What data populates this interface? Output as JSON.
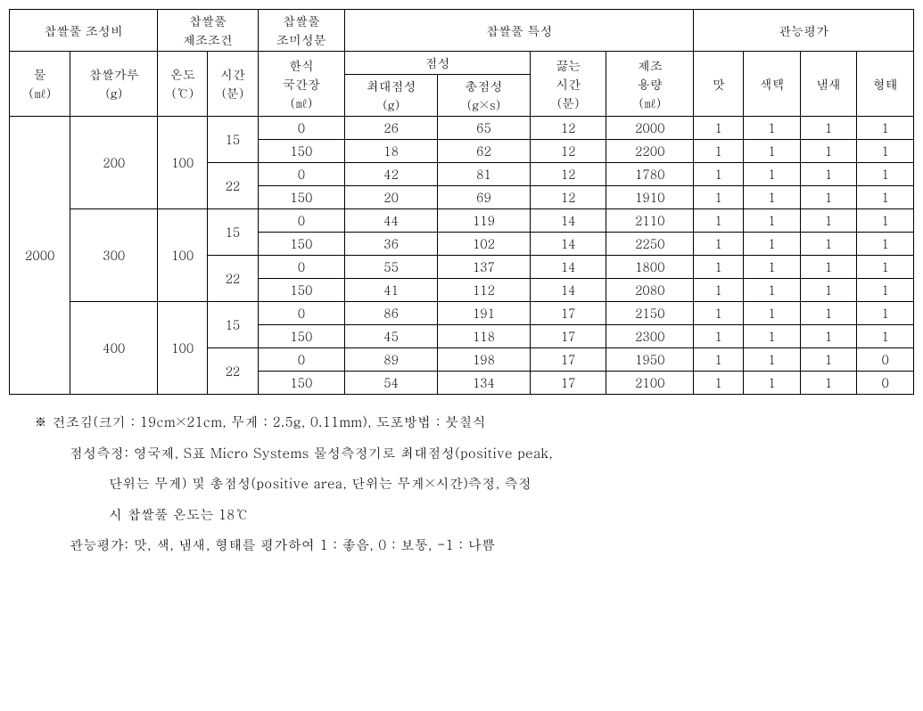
{
  "headers": {
    "group1": "찹쌀풀 조성비",
    "group2": "찹쌀풀\n제조조건",
    "group3": "찹쌀풀\n조미성분",
    "group4": "찹쌀풀 특성",
    "group5": "관능평가",
    "water": "물\n(㎖)",
    "flour": "찹쌀가루\n(g)",
    "temp": "온도\n(℃)",
    "time": "시간\n(분)",
    "soy": "한식\n국간장\n(㎖)",
    "visc_group": "점성",
    "maxvisc": "최대점성\n(g)",
    "totvisc": "총점성\n(g×s)",
    "boil": "끓는\n시간\n(분)",
    "vol": "제조\n용량\n(㎖)",
    "taste": "맛",
    "color": "색택",
    "smell": "냄새",
    "shape": "형태"
  },
  "water_val": "2000",
  "flour_vals": [
    "200",
    "300",
    "400"
  ],
  "temp_val": "100",
  "time_vals": [
    "15",
    "22"
  ],
  "rows": [
    {
      "soy": "0",
      "max": "26",
      "tot": "65",
      "boil": "12",
      "vol": "2000",
      "t": "1",
      "c": "1",
      "s": "1",
      "f": "1"
    },
    {
      "soy": "150",
      "max": "18",
      "tot": "62",
      "boil": "12",
      "vol": "2200",
      "t": "1",
      "c": "1",
      "s": "1",
      "f": "1"
    },
    {
      "soy": "0",
      "max": "42",
      "tot": "81",
      "boil": "12",
      "vol": "1780",
      "t": "1",
      "c": "1",
      "s": "1",
      "f": "1"
    },
    {
      "soy": "150",
      "max": "20",
      "tot": "69",
      "boil": "12",
      "vol": "1910",
      "t": "1",
      "c": "1",
      "s": "1",
      "f": "1"
    },
    {
      "soy": "0",
      "max": "44",
      "tot": "119",
      "boil": "14",
      "vol": "2110",
      "t": "1",
      "c": "1",
      "s": "1",
      "f": "1"
    },
    {
      "soy": "150",
      "max": "36",
      "tot": "102",
      "boil": "14",
      "vol": "2250",
      "t": "1",
      "c": "1",
      "s": "1",
      "f": "1"
    },
    {
      "soy": "0",
      "max": "55",
      "tot": "137",
      "boil": "14",
      "vol": "1800",
      "t": "1",
      "c": "1",
      "s": "1",
      "f": "1"
    },
    {
      "soy": "150",
      "max": "41",
      "tot": "112",
      "boil": "14",
      "vol": "2080",
      "t": "1",
      "c": "1",
      "s": "1",
      "f": "1"
    },
    {
      "soy": "0",
      "max": "86",
      "tot": "191",
      "boil": "17",
      "vol": "2150",
      "t": "1",
      "c": "1",
      "s": "1",
      "f": "1"
    },
    {
      "soy": "150",
      "max": "45",
      "tot": "118",
      "boil": "17",
      "vol": "2300",
      "t": "1",
      "c": "1",
      "s": "1",
      "f": "1"
    },
    {
      "soy": "0",
      "max": "89",
      "tot": "198",
      "boil": "17",
      "vol": "1950",
      "t": "1",
      "c": "1",
      "s": "1",
      "f": "0"
    },
    {
      "soy": "150",
      "max": "54",
      "tot": "134",
      "boil": "17",
      "vol": "2100",
      "t": "1",
      "c": "1",
      "s": "1",
      "f": "0"
    }
  ],
  "notes": {
    "l1": "※ 건조김(크기 : 19cm×21cm, 무게 : 2.5g, 0.11mm), 도포방법 : 붓칠식",
    "l2": "점성측정: 영국제, S표 Micro Systems 물성측정기로 최대점성(positive peak,",
    "l3": "단위는 무게) 및  총점성(positive area, 단위는 무게×시간)측정, 측정",
    "l4": "시 찹쌀풀 온도는 18℃",
    "l5": "관능평가: 맛, 색, 냄새, 형태를 평가하여 1 : 좋음, 0 : 보통, -1 : 나쁨"
  }
}
